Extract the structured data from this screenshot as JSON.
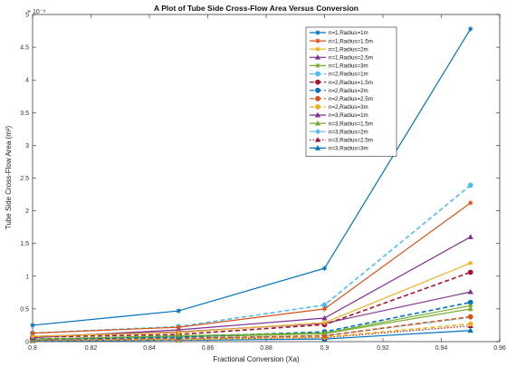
{
  "chart_data": {
    "type": "line",
    "title": "A Plot of Tube Side Cross-Flow Area Versus Conversion",
    "xlabel": "Fractional Conversion (Xa)",
    "ylabel": "Tube Side Cross-Flow Area (m²)",
    "y_exponent_label": "× 10⁻⁹",
    "xlim": [
      0.8,
      0.96
    ],
    "ylim": [
      0,
      5
    ],
    "x_ticks": [
      "0.8",
      "0.82",
      "0.84",
      "0.86",
      "0.88",
      "0.9",
      "0.92",
      "0.94",
      "0.96"
    ],
    "y_ticks": [
      "0",
      "0.5",
      "1",
      "1.5",
      "2",
      "2.5",
      "3",
      "3.5",
      "4",
      "4.5",
      "5"
    ],
    "x": [
      0.8,
      0.85,
      0.9,
      0.95
    ],
    "legend_position": "top-right",
    "series": [
      {
        "name": "n=1,Radius=1m",
        "values": [
          0.25,
          0.47,
          1.12,
          4.78
        ],
        "color": "#0072BD",
        "dash": "solid",
        "marker": "star"
      },
      {
        "name": "n=1,Radius=1.5m",
        "values": [
          0.13,
          0.22,
          0.5,
          2.12
        ],
        "color": "#D95319",
        "dash": "solid",
        "marker": "star"
      },
      {
        "name": "n=1,Radius=2m",
        "values": [
          0.08,
          0.14,
          0.29,
          1.2
        ],
        "color": "#EDB120",
        "dash": "solid",
        "marker": "star"
      },
      {
        "name": "n=1,Radius=2.5m",
        "values": [
          0.06,
          0.18,
          0.36,
          1.6
        ],
        "color": "#7E2F8E",
        "dash": "solid",
        "marker": "triangle"
      },
      {
        "name": "n=1,Radius=3m",
        "values": [
          0.04,
          0.09,
          0.13,
          0.55
        ],
        "color": "#77AC30",
        "dash": "solid",
        "marker": "star"
      },
      {
        "name": "n=2,Radius=1m",
        "values": [
          0.13,
          0.23,
          0.56,
          2.39
        ],
        "color": "#4DBEEE",
        "dash": "dashed",
        "marker": "circle"
      },
      {
        "name": "n=2,Radius=1.5m",
        "values": [
          0.07,
          0.11,
          0.26,
          1.06
        ],
        "color": "#A2142F",
        "dash": "dashed",
        "marker": "circle"
      },
      {
        "name": "n=2,Radius=2m",
        "values": [
          0.04,
          0.07,
          0.15,
          0.6
        ],
        "color": "#0072BD",
        "dash": "dashed",
        "marker": "circle"
      },
      {
        "name": "n=2,Radius=2.5m",
        "values": [
          0.03,
          0.05,
          0.09,
          0.38
        ],
        "color": "#D95319",
        "dash": "dashed",
        "marker": "circle"
      },
      {
        "name": "n=2,Radius=3m",
        "values": [
          0.02,
          0.03,
          0.07,
          0.27
        ],
        "color": "#EDB120",
        "dash": "dashed",
        "marker": "circle"
      },
      {
        "name": "n=3,Radius=1m",
        "values": [
          0.08,
          0.15,
          0.28,
          0.76
        ],
        "color": "#7E2F8E",
        "dash": "solid",
        "marker": "triangle"
      },
      {
        "name": "n=3,Radius=1.5m",
        "values": [
          0.04,
          0.07,
          0.12,
          0.5
        ],
        "color": "#77AC30",
        "dash": "solid",
        "marker": "triangle"
      },
      {
        "name": "n=3,Radius=2m",
        "values": [
          0.03,
          0.05,
          0.09,
          0.37
        ],
        "color": "#4DBEEE",
        "dash": "dashdot",
        "marker": "diamond"
      },
      {
        "name": "n=3,Radius=2.5m",
        "values": [
          0.02,
          0.04,
          0.06,
          0.24
        ],
        "color": "#A2142F",
        "dash": "dotted",
        "marker": "triangle"
      },
      {
        "name": "n=3,Radius=3m",
        "values": [
          0.01,
          0.02,
          0.04,
          0.17
        ],
        "color": "#0072BD",
        "dash": "solid",
        "marker": "triangle"
      }
    ]
  }
}
